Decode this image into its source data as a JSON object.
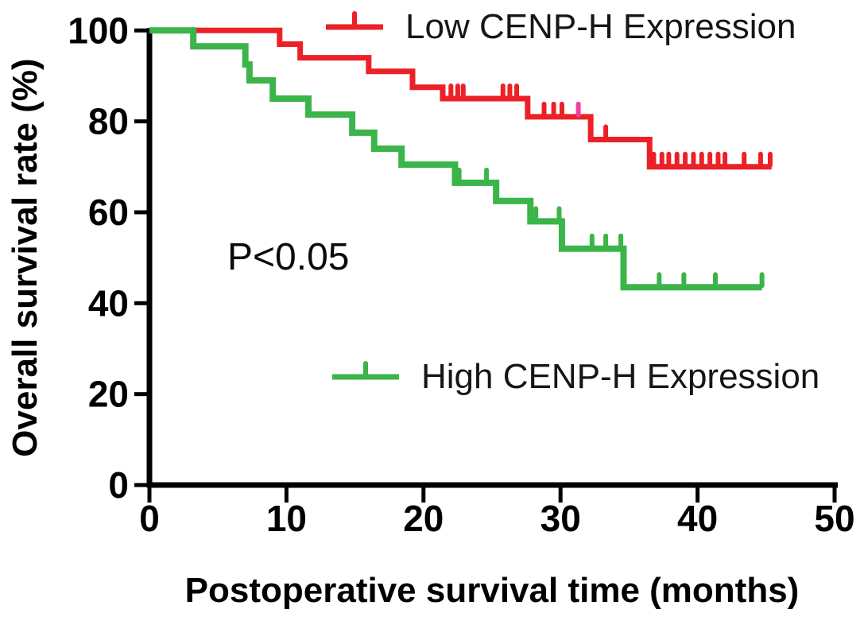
{
  "figure": {
    "background": "#ffffff"
  },
  "chart_data": {
    "type": "line",
    "subtype": "kaplan_meier_step_survival",
    "title": "",
    "xlabel": "Postoperative survival time (months)",
    "ylabel": "Overall survival rate (%)",
    "xlim": [
      0,
      50
    ],
    "ylim": [
      0,
      100
    ],
    "xticks": [
      0,
      10,
      20,
      30,
      40,
      50
    ],
    "yticks": [
      100,
      80,
      60,
      40,
      20,
      0
    ],
    "grid": false,
    "annotation": "P<0.05",
    "legend_position": "inside-plot-right",
    "axis_color": "#000000",
    "text_color": "#111111",
    "series": [
      {
        "name": "Low CENP-H Expression",
        "color": "#EC2127",
        "line_width": 7,
        "steps": [
          [
            0,
            100
          ],
          [
            9.5,
            97
          ],
          [
            11,
            94
          ],
          [
            16,
            91
          ],
          [
            19.2,
            87.5
          ],
          [
            21.4,
            85
          ],
          [
            27.6,
            81
          ],
          [
            32.2,
            76
          ],
          [
            36.5,
            70
          ]
        ],
        "end_x": 45.4,
        "censors": [
          [
            22.0,
            85
          ],
          [
            22.5,
            85
          ],
          [
            22.9,
            85
          ],
          [
            25.8,
            85
          ],
          [
            26.3,
            85
          ],
          [
            26.8,
            85
          ],
          [
            28.8,
            81
          ],
          [
            29.5,
            81
          ],
          [
            30.1,
            81
          ],
          [
            31.3,
            81,
            "#F23FA0"
          ],
          [
            33.3,
            76
          ],
          [
            36.8,
            70
          ],
          [
            37.4,
            70
          ],
          [
            37.9,
            70
          ],
          [
            38.5,
            70
          ],
          [
            39.1,
            70
          ],
          [
            39.7,
            70
          ],
          [
            40.3,
            70
          ],
          [
            40.9,
            70
          ],
          [
            41.5,
            70
          ],
          [
            42.0,
            70
          ],
          [
            43.4,
            70
          ],
          [
            44.6,
            70
          ],
          [
            45.3,
            70
          ]
        ]
      },
      {
        "name": "High CENP-H Expression",
        "color": "#3BB44A",
        "line_width": 8,
        "steps": [
          [
            0,
            100
          ],
          [
            3.2,
            96.5
          ],
          [
            7.0,
            92.5
          ],
          [
            7.3,
            89
          ],
          [
            9.0,
            85
          ],
          [
            11.6,
            81.5
          ],
          [
            14.8,
            77.5
          ],
          [
            16.4,
            74
          ],
          [
            18.4,
            70.5
          ],
          [
            22.3,
            66.5
          ],
          [
            25.3,
            62.5
          ],
          [
            27.8,
            58
          ],
          [
            30.1,
            52
          ],
          [
            34.6,
            43.5
          ]
        ],
        "end_x": 44.7,
        "censors": [
          [
            22.6,
            66.5
          ],
          [
            24.6,
            66.5
          ],
          [
            28.2,
            58
          ],
          [
            29.9,
            58
          ],
          [
            32.3,
            52
          ],
          [
            33.3,
            52
          ],
          [
            34.4,
            52
          ],
          [
            37.2,
            43.5
          ],
          [
            39.0,
            43.5
          ],
          [
            41.3,
            43.5
          ],
          [
            44.7,
            43.5
          ]
        ]
      }
    ]
  }
}
